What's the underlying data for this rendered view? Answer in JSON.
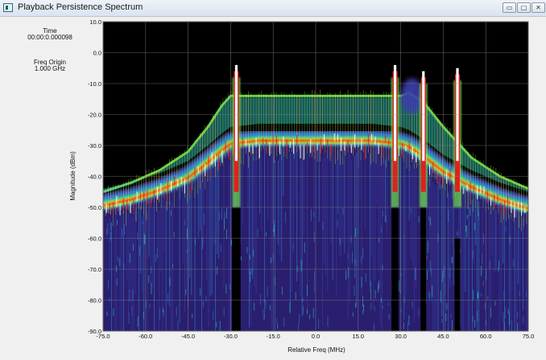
{
  "window": {
    "title": "Playback Persistence Spectrum",
    "buttons": [
      {
        "icon": "minimize-icon",
        "glyph": "▭"
      },
      {
        "icon": "maximize-icon",
        "glyph": "□"
      },
      {
        "icon": "close-icon",
        "glyph": "✕"
      }
    ]
  },
  "info": {
    "time_label": "Time",
    "time_value": "00:00:0.000098",
    "freq_origin_label": "Freq Origin",
    "freq_origin_value": "1.000 GHz"
  },
  "chart_data": {
    "type": "heatmap",
    "title": "",
    "xlabel": "Relative Freq (MHz)",
    "ylabel": "Magnitude (dBm)",
    "xlim": [
      -75,
      75
    ],
    "ylim": [
      -90,
      10
    ],
    "x_ticks": [
      "-75.0",
      "-60.0",
      "-45.0",
      "-30.0",
      "-15.0",
      "0.0",
      "15.0",
      "30.0",
      "45.0",
      "60.0",
      "75.0"
    ],
    "y_ticks": [
      "10.0",
      "0.0",
      "-10.0",
      "-20.0",
      "-30.0",
      "-40.0",
      "-50.0",
      "-60.0",
      "-70.0",
      "-80.0",
      "-90.0"
    ],
    "grid": true,
    "background": "#000000",
    "palette": [
      "#2a1f6e",
      "#3a3fa8",
      "#2f7fd0",
      "#2ec0c8",
      "#6fdc4a",
      "#f0e030",
      "#f08020",
      "#e02020",
      "#ffffff"
    ],
    "envelope": [
      {
        "x": -75,
        "top": -45,
        "dense": -48
      },
      {
        "x": -65,
        "top": -42,
        "dense": -46
      },
      {
        "x": -55,
        "top": -38,
        "dense": -43
      },
      {
        "x": -45,
        "top": -32,
        "dense": -39
      },
      {
        "x": -38,
        "top": -24,
        "dense": -34
      },
      {
        "x": -33,
        "top": -17,
        "dense": -30
      },
      {
        "x": -30,
        "top": -14,
        "dense": -28
      },
      {
        "x": -20,
        "top": -14,
        "dense": -27
      },
      {
        "x": 0,
        "top": -14,
        "dense": -27
      },
      {
        "x": 20,
        "top": -14,
        "dense": -27
      },
      {
        "x": 30,
        "top": -14,
        "dense": -28
      },
      {
        "x": 33,
        "top": -13,
        "dense": -29
      },
      {
        "x": 38,
        "top": -16,
        "dense": -32
      },
      {
        "x": 45,
        "top": -24,
        "dense": -37
      },
      {
        "x": 55,
        "top": -34,
        "dense": -42
      },
      {
        "x": 65,
        "top": -40,
        "dense": -46
      },
      {
        "x": 75,
        "top": -44,
        "dense": -49
      }
    ],
    "signals": [
      {
        "x": -28,
        "peak": -8
      },
      {
        "x": 28,
        "peak": -8
      },
      {
        "x": 38,
        "peak": -10
      },
      {
        "x": 50,
        "peak": -9
      }
    ],
    "gaps": [
      {
        "x": -28,
        "width": 3,
        "from": -50
      },
      {
        "x": 28,
        "width": 2.5,
        "from": -50
      },
      {
        "x": 38,
        "width": 2,
        "from": -50
      },
      {
        "x": 50,
        "width": 2,
        "from": -60
      }
    ],
    "bump": {
      "x": 34,
      "peak": -8
    }
  }
}
